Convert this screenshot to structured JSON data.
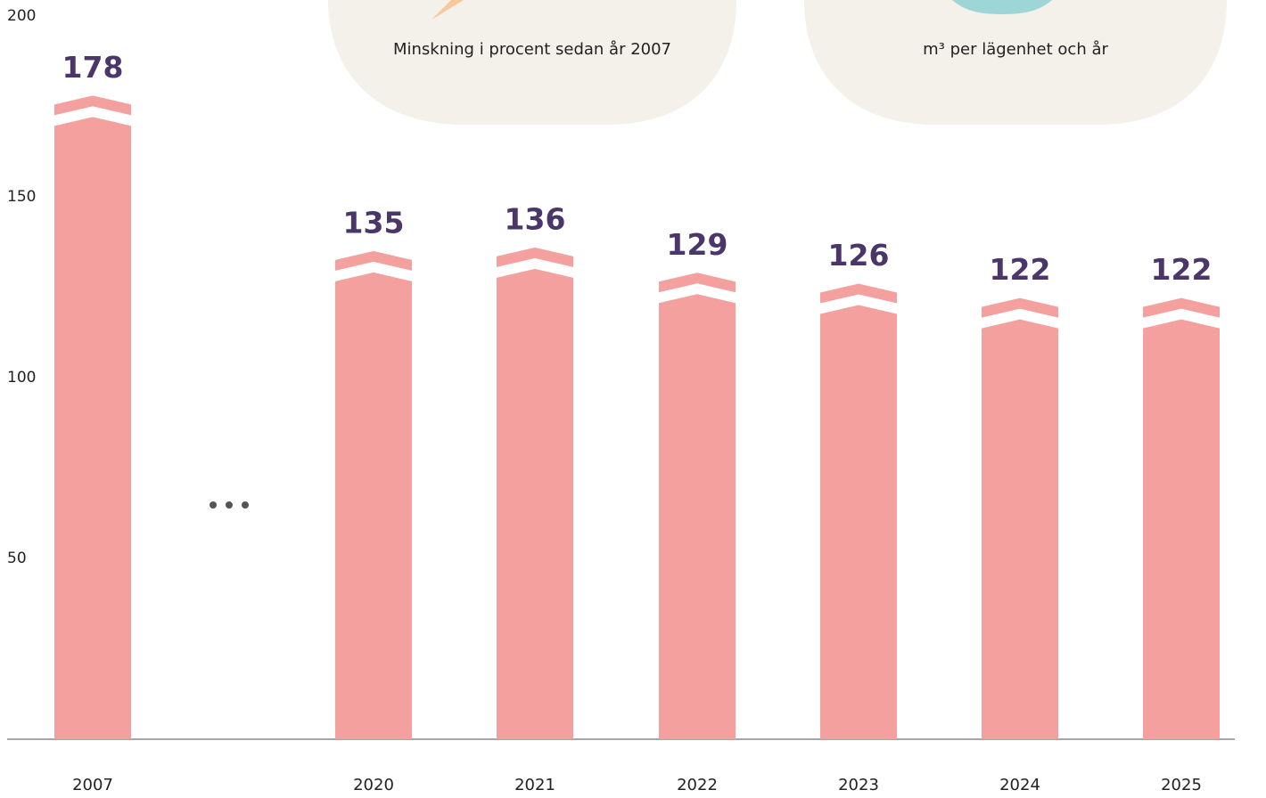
{
  "chart_data": {
    "type": "bar",
    "categories": [
      "2007",
      "2020",
      "2021",
      "2022",
      "2023",
      "2024",
      "2025"
    ],
    "values": [
      178,
      135,
      136,
      129,
      126,
      122,
      122
    ],
    "color": "#f4a09f",
    "ylim": [
      0,
      200
    ],
    "yticks": [
      50,
      100,
      150,
      200
    ]
  },
  "cards": [
    {
      "caption": "Minskning i procent sedan år 2007"
    },
    {
      "caption": "m³ per lägenhet och år"
    }
  ]
}
